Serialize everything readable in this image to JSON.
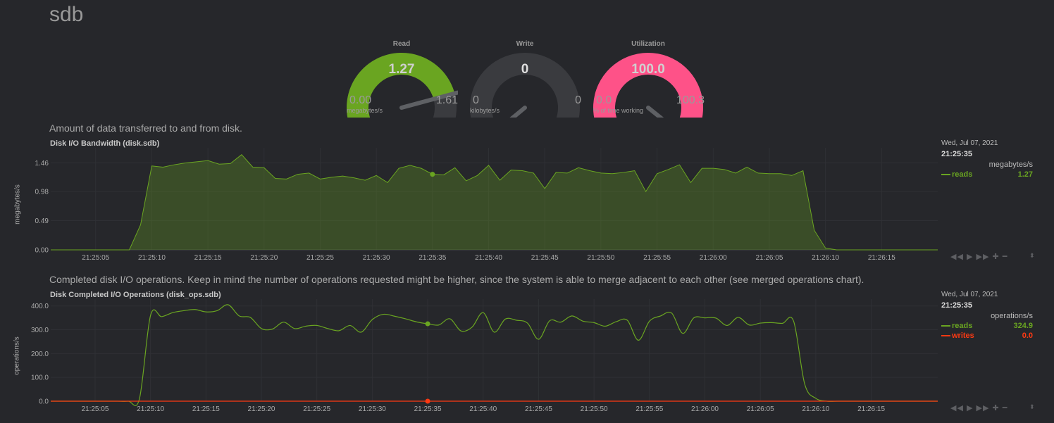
{
  "page": {
    "title": "sdb"
  },
  "gauges": [
    {
      "title": "Read",
      "value": "1.27",
      "min": "0.00",
      "max": "1.61",
      "unit": "megabytes/s",
      "fraction": 0.789,
      "color": "#6aa521",
      "text_color": "#cfcfcf"
    },
    {
      "title": "Write",
      "value": "0",
      "min": "0",
      "max": "0",
      "unit": "kilobytes/s",
      "fraction": 0.0,
      "color": "#5a5c60",
      "text_color": "#e0e0e0"
    },
    {
      "title": "Utilization",
      "value": "100.0",
      "min": "0.0",
      "max": "100.3",
      "unit": "% of time working",
      "fraction": 0.997,
      "color": "#fe5288",
      "text_color": "#d0d0d0"
    }
  ],
  "chart1": {
    "description": "Amount of data transferred to and from disk.",
    "title": "Disk I/O Bandwidth (disk.sdb)",
    "legend_date": "Wed, Jul 07, 2021",
    "legend_time": "21:25:35",
    "units": "megabytes/s",
    "series_legend": [
      {
        "name": "reads",
        "value": "1.27",
        "color": "#6aa521"
      }
    ]
  },
  "chart2": {
    "description": "Completed disk I/O operations. Keep in mind the number of operations requested might be higher, since the system is able to merge adjacent to each other (see merged operations chart).",
    "title": "Disk Completed I/O Operations (disk_ops.sdb)",
    "legend_date": "Wed, Jul 07, 2021",
    "legend_time": "21:25:35",
    "units": "operations/s",
    "series_legend": [
      {
        "name": "reads",
        "value": "324.9",
        "color": "#6aa521"
      },
      {
        "name": "writes",
        "value": "0.0",
        "color": "#fe3912"
      }
    ]
  },
  "chart_data": [
    {
      "type": "area",
      "title": "Disk I/O Bandwidth (disk.sdb)",
      "ylabel": "megabytes/s",
      "ylim": [
        0,
        1.62
      ],
      "y_ticks": [
        "0.00",
        "0.49",
        "0.98",
        "1.46"
      ],
      "y_tick_values": [
        0,
        0.49,
        0.98,
        1.46
      ],
      "x_ticks": [
        "21:25:05",
        "21:25:10",
        "21:25:15",
        "21:25:20",
        "21:25:25",
        "21:25:30",
        "21:25:35",
        "21:25:40",
        "21:25:45",
        "21:25:50",
        "21:25:55",
        "21:26:00",
        "21:26:05",
        "21:26:10",
        "21:26:15"
      ],
      "x_tick_seconds": [
        5,
        10,
        15,
        20,
        25,
        30,
        35,
        40,
        45,
        50,
        55,
        60,
        65,
        70,
        75
      ],
      "x_range_seconds": [
        1,
        80
      ],
      "highlight_x": 35,
      "grid": true,
      "series": [
        {
          "name": "reads",
          "color": "#6aa521",
          "x": [
            1,
            2,
            3,
            4,
            5,
            6,
            7,
            8,
            9,
            10,
            11,
            12,
            13,
            14,
            15,
            16,
            17,
            18,
            19,
            20,
            21,
            22,
            23,
            24,
            25,
            26,
            27,
            28,
            29,
            30,
            31,
            32,
            33,
            34,
            35,
            36,
            37,
            38,
            39,
            40,
            41,
            42,
            43,
            44,
            45,
            46,
            47,
            48,
            49,
            50,
            51,
            52,
            53,
            54,
            55,
            56,
            57,
            58,
            59,
            60,
            61,
            62,
            63,
            64,
            65,
            66,
            67,
            68,
            69,
            70,
            71,
            72,
            73,
            74,
            75,
            76,
            77,
            78,
            79,
            80
          ],
          "values": [
            0,
            0,
            0,
            0,
            0,
            0,
            0,
            0,
            0.42,
            1.41,
            1.39,
            1.43,
            1.46,
            1.48,
            1.5,
            1.44,
            1.45,
            1.6,
            1.39,
            1.38,
            1.2,
            1.19,
            1.27,
            1.29,
            1.19,
            1.22,
            1.24,
            1.21,
            1.17,
            1.25,
            1.13,
            1.37,
            1.42,
            1.37,
            1.27,
            1.26,
            1.38,
            1.16,
            1.25,
            1.42,
            1.17,
            1.34,
            1.33,
            1.29,
            1.03,
            1.3,
            1.29,
            1.38,
            1.33,
            1.29,
            1.28,
            1.3,
            1.33,
            0.98,
            1.28,
            1.35,
            1.43,
            1.13,
            1.37,
            1.37,
            1.35,
            1.29,
            1.39,
            1.29,
            1.28,
            1.28,
            1.25,
            1.33,
            0.33,
            0.03,
            0,
            0,
            0,
            0,
            0,
            0,
            0,
            0,
            0,
            0
          ]
        }
      ]
    },
    {
      "type": "line",
      "title": "Disk Completed I/O Operations (disk_ops.sdb)",
      "ylabel": "operations/s",
      "ylim": [
        0,
        405
      ],
      "y_ticks": [
        "0.0",
        "100.0",
        "200.0",
        "300.0",
        "400.0"
      ],
      "y_tick_values": [
        0,
        100,
        200,
        300,
        400
      ],
      "x_ticks": [
        "21:25:05",
        "21:25:10",
        "21:25:15",
        "21:25:20",
        "21:25:25",
        "21:25:30",
        "21:25:35",
        "21:25:40",
        "21:25:45",
        "21:25:50",
        "21:25:55",
        "21:26:00",
        "21:26:05",
        "21:26:10",
        "21:26:15"
      ],
      "x_tick_seconds": [
        5,
        10,
        15,
        20,
        25,
        30,
        35,
        40,
        45,
        50,
        55,
        60,
        65,
        70,
        75
      ],
      "x_range_seconds": [
        1,
        81
      ],
      "highlight_x": 35,
      "grid": true,
      "series": [
        {
          "name": "reads",
          "color": "#6aa521",
          "x": [
            1,
            2,
            3,
            4,
            5,
            6,
            7,
            8,
            9,
            10,
            11,
            12,
            13,
            14,
            15,
            16,
            17,
            18,
            19,
            20,
            21,
            22,
            23,
            24,
            25,
            26,
            27,
            28,
            29,
            30,
            31,
            32,
            33,
            34,
            35,
            36,
            37,
            38,
            39,
            40,
            41,
            42,
            43,
            44,
            45,
            46,
            47,
            48,
            49,
            50,
            51,
            52,
            53,
            54,
            55,
            56,
            57,
            58,
            59,
            60,
            61,
            62,
            63,
            64,
            65,
            66,
            67,
            68,
            69,
            70,
            71,
            72,
            73,
            74,
            75,
            76,
            77,
            78,
            79,
            80,
            81
          ],
          "values": [
            0,
            0,
            0,
            0,
            0,
            0,
            0,
            0,
            10,
            360,
            355,
            372,
            380,
            385,
            375,
            380,
            405,
            358,
            352,
            305,
            303,
            332,
            305,
            315,
            318,
            305,
            296,
            318,
            290,
            343,
            365,
            357,
            346,
            333,
            325,
            320,
            346,
            295,
            311,
            372,
            290,
            345,
            340,
            328,
            260,
            338,
            332,
            358,
            336,
            330,
            315,
            334,
            340,
            256,
            336,
            358,
            370,
            285,
            350,
            350,
            349,
            318,
            352,
            320,
            328,
            330,
            327,
            336,
            72,
            12,
            0,
            0,
            0,
            0,
            0,
            0,
            0,
            0,
            0,
            0,
            0
          ]
        },
        {
          "name": "writes",
          "color": "#fe3912",
          "x": [
            1,
            81
          ],
          "values": [
            0,
            0
          ]
        }
      ]
    }
  ]
}
